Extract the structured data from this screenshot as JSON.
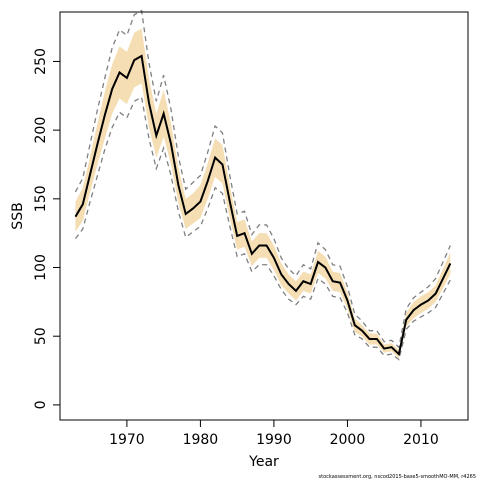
{
  "chart_data": {
    "type": "line",
    "xlabel": "Year",
    "ylabel": "SSB",
    "footnote": "stockassessment.org, nscod2015-base5-smoothMO-MM, r4265",
    "x": [
      1963,
      1964,
      1965,
      1966,
      1967,
      1968,
      1969,
      1970,
      1971,
      1972,
      1973,
      1974,
      1975,
      1976,
      1977,
      1978,
      1979,
      1980,
      1981,
      1982,
      1983,
      1984,
      1985,
      1986,
      1987,
      1988,
      1989,
      1990,
      1991,
      1992,
      1993,
      1994,
      1995,
      1996,
      1997,
      1998,
      1999,
      2000,
      2001,
      2002,
      2003,
      2004,
      2005,
      2006,
      2007,
      2008,
      2009,
      2010,
      2011,
      2012,
      2013,
      2014
    ],
    "band": {
      "color": "#f5deb3",
      "lower": [
        126,
        134,
        155,
        175,
        194,
        212,
        223,
        219,
        231,
        234,
        202,
        180,
        195,
        175,
        147,
        128,
        132,
        136,
        150,
        166,
        161,
        136,
        113,
        115,
        101,
        107,
        107,
        98,
        87,
        81,
        76,
        83,
        81,
        96,
        92,
        83,
        82,
        70,
        53,
        50,
        44,
        44,
        38,
        39,
        34,
        57,
        63,
        67,
        70,
        75,
        85,
        95
      ],
      "upper": [
        148,
        158,
        181,
        205,
        228,
        248,
        261,
        257,
        271,
        274,
        238,
        212,
        229,
        205,
        173,
        150,
        154,
        160,
        176,
        194,
        189,
        160,
        133,
        135,
        119,
        125,
        125,
        116,
        103,
        95,
        90,
        97,
        95,
        112,
        108,
        97,
        96,
        82,
        63,
        58,
        52,
        52,
        44,
        45,
        40,
        67,
        75,
        79,
        82,
        87,
        99,
        111
      ]
    },
    "series": [
      {
        "color": "#808080",
        "dashed": true,
        "values": [
          121,
          128,
          148,
          167,
          186,
          202,
          213,
          209,
          221,
          224,
          194,
          172,
          187,
          167,
          141,
          122,
          126,
          130,
          143,
          158,
          154,
          130,
          108,
          110,
          97,
          102,
          102,
          94,
          84,
          77,
          73,
          79,
          77,
          92,
          88,
          79,
          78,
          67,
          51,
          48,
          42,
          42,
          36,
          37,
          33,
          55,
          61,
          64,
          67,
          71,
          81,
          91
        ]
      },
      {
        "color": "#808080",
        "dashed": true,
        "values": [
          155,
          165,
          190,
          215,
          238,
          260,
          273,
          269,
          284,
          287,
          249,
          221,
          240,
          215,
          181,
          157,
          162,
          167,
          184,
          203,
          198,
          167,
          139,
          141,
          124,
          131,
          131,
          121,
          107,
          99,
          94,
          102,
          99,
          118,
          113,
          102,
          101,
          86,
          66,
          61,
          54,
          54,
          46,
          47,
          42,
          70,
          78,
          82,
          86,
          92,
          104,
          116
        ]
      },
      {
        "color": "#000000",
        "dashed": false,
        "values": [
          137,
          146,
          168,
          190,
          211,
          230,
          242,
          238,
          251,
          254,
          220,
          196,
          212,
          190,
          160,
          139,
          143,
          148,
          163,
          180,
          175,
          148,
          123,
          125,
          110,
          116,
          116,
          107,
          95,
          88,
          83,
          90,
          88,
          104,
          100,
          90,
          89,
          76,
          58,
          54,
          48,
          48,
          41,
          42,
          37,
          62,
          69,
          73,
          76,
          81,
          92,
          103
        ]
      }
    ],
    "xlim": [
      1960.9,
      2016.4
    ],
    "xticks": [
      1970,
      1980,
      1990,
      2000,
      2010
    ],
    "ylim": [
      -11,
      286
    ],
    "yticks": [
      0,
      50,
      100,
      150,
      200,
      250
    ]
  }
}
